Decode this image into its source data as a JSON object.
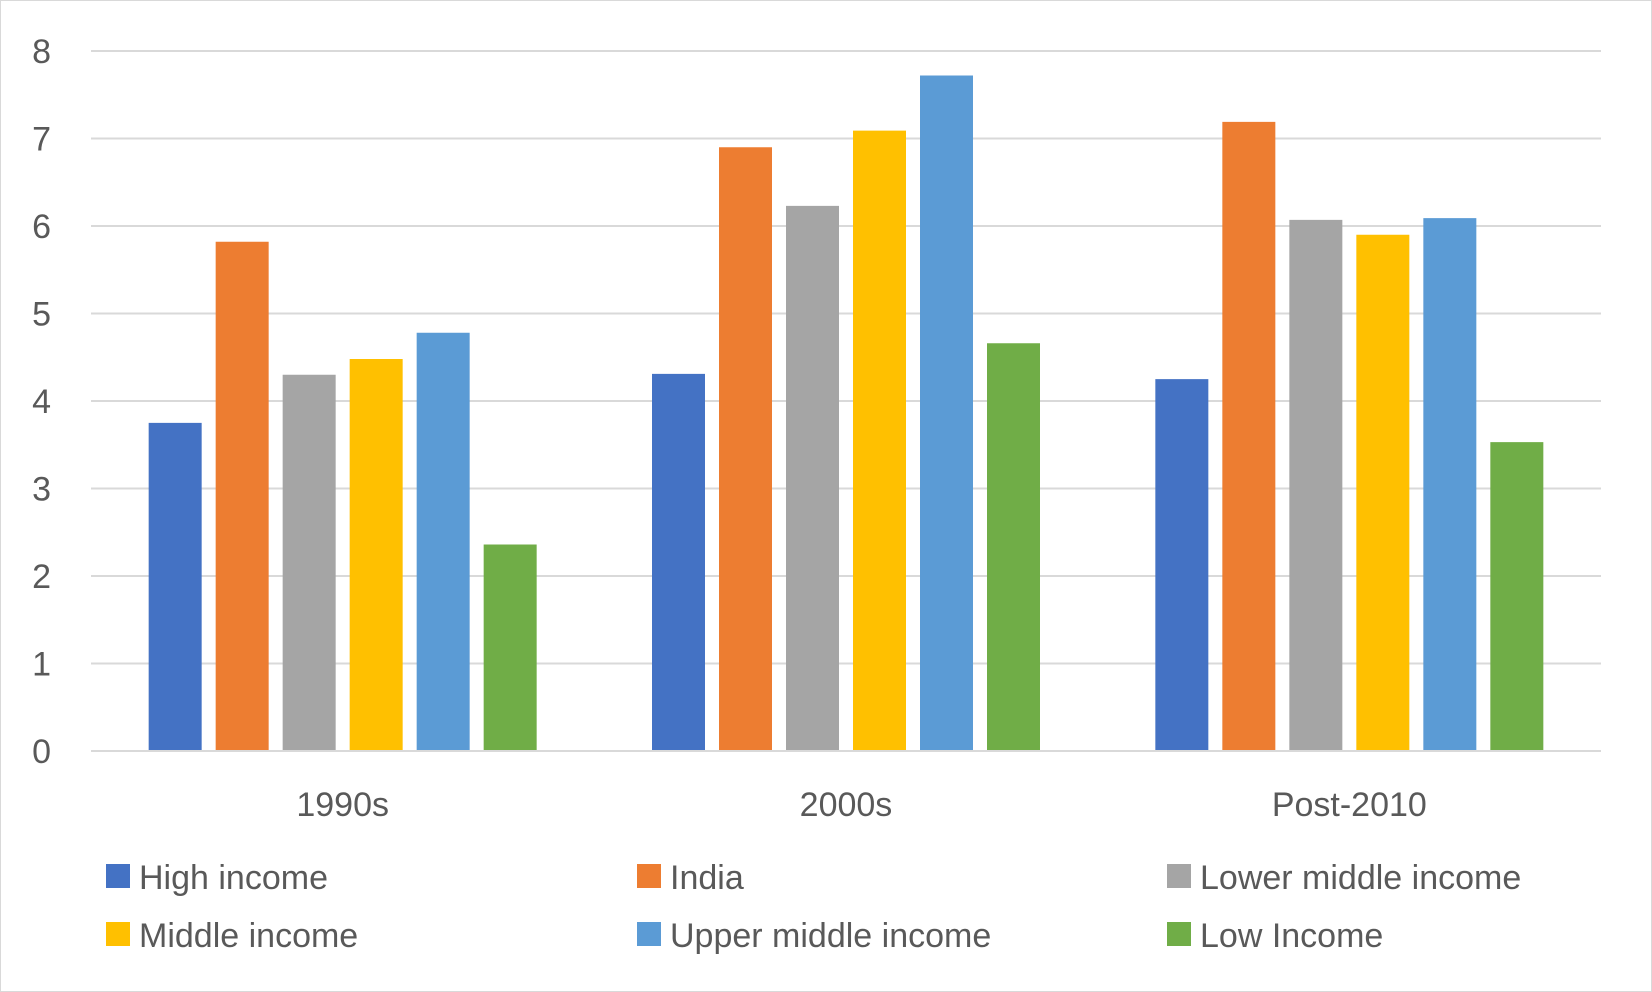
{
  "chart_data": {
    "type": "bar",
    "title": "",
    "xlabel": "",
    "ylabel": "",
    "categories": [
      "1990s",
      "2000s",
      "Post-2010"
    ],
    "ylim": [
      0,
      8
    ],
    "yticks": [
      0,
      1,
      2,
      3,
      4,
      5,
      6,
      7,
      8
    ],
    "grid": true,
    "legend_position": "bottom",
    "series": [
      {
        "name": "High income",
        "color": "#4472C4",
        "values": [
          3.75,
          4.31,
          4.25
        ]
      },
      {
        "name": "India",
        "color": "#ED7D31",
        "values": [
          5.82,
          6.9,
          7.19
        ]
      },
      {
        "name": "Lower middle income",
        "color": "#A5A5A5",
        "values": [
          4.3,
          6.23,
          6.07
        ]
      },
      {
        "name": "Middle income",
        "color": "#FFC000",
        "values": [
          4.48,
          7.09,
          5.9
        ]
      },
      {
        "name": "Upper middle income",
        "color": "#5B9BD5",
        "values": [
          4.78,
          7.72,
          6.09
        ]
      },
      {
        "name": "Low Income",
        "color": "#70AD47",
        "values": [
          2.36,
          4.66,
          3.53
        ]
      }
    ]
  }
}
